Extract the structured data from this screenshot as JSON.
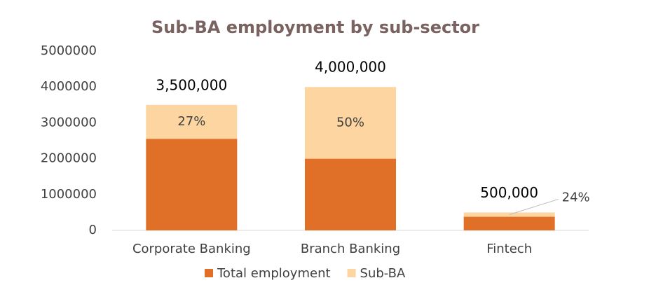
{
  "chart_data": {
    "type": "stacked_bar",
    "title": "Sub-BA employment by sub-sector",
    "categories": [
      "Corporate Banking",
      "Branch Banking",
      "Fintech"
    ],
    "series": [
      {
        "name": "Total employment",
        "color": "#e07028",
        "values": [
          2555000,
          2000000,
          380000
        ]
      },
      {
        "name": "Sub-BA",
        "color": "#fdd5a0",
        "values": [
          945000,
          2000000,
          120000
        ]
      }
    ],
    "totals": {
      "values": [
        3500000,
        4000000,
        500000
      ],
      "value_labels": [
        "3,500,000",
        "4,000,000",
        "500,000"
      ]
    },
    "shares": {
      "values": [
        27,
        50,
        24
      ],
      "value_labels": [
        "27%",
        "50%",
        "24%"
      ]
    },
    "ylim": [
      0,
      5000000
    ],
    "yticks": [
      0,
      1000000,
      2000000,
      3000000,
      4000000,
      5000000
    ],
    "grid": false,
    "legend": "bottom"
  }
}
